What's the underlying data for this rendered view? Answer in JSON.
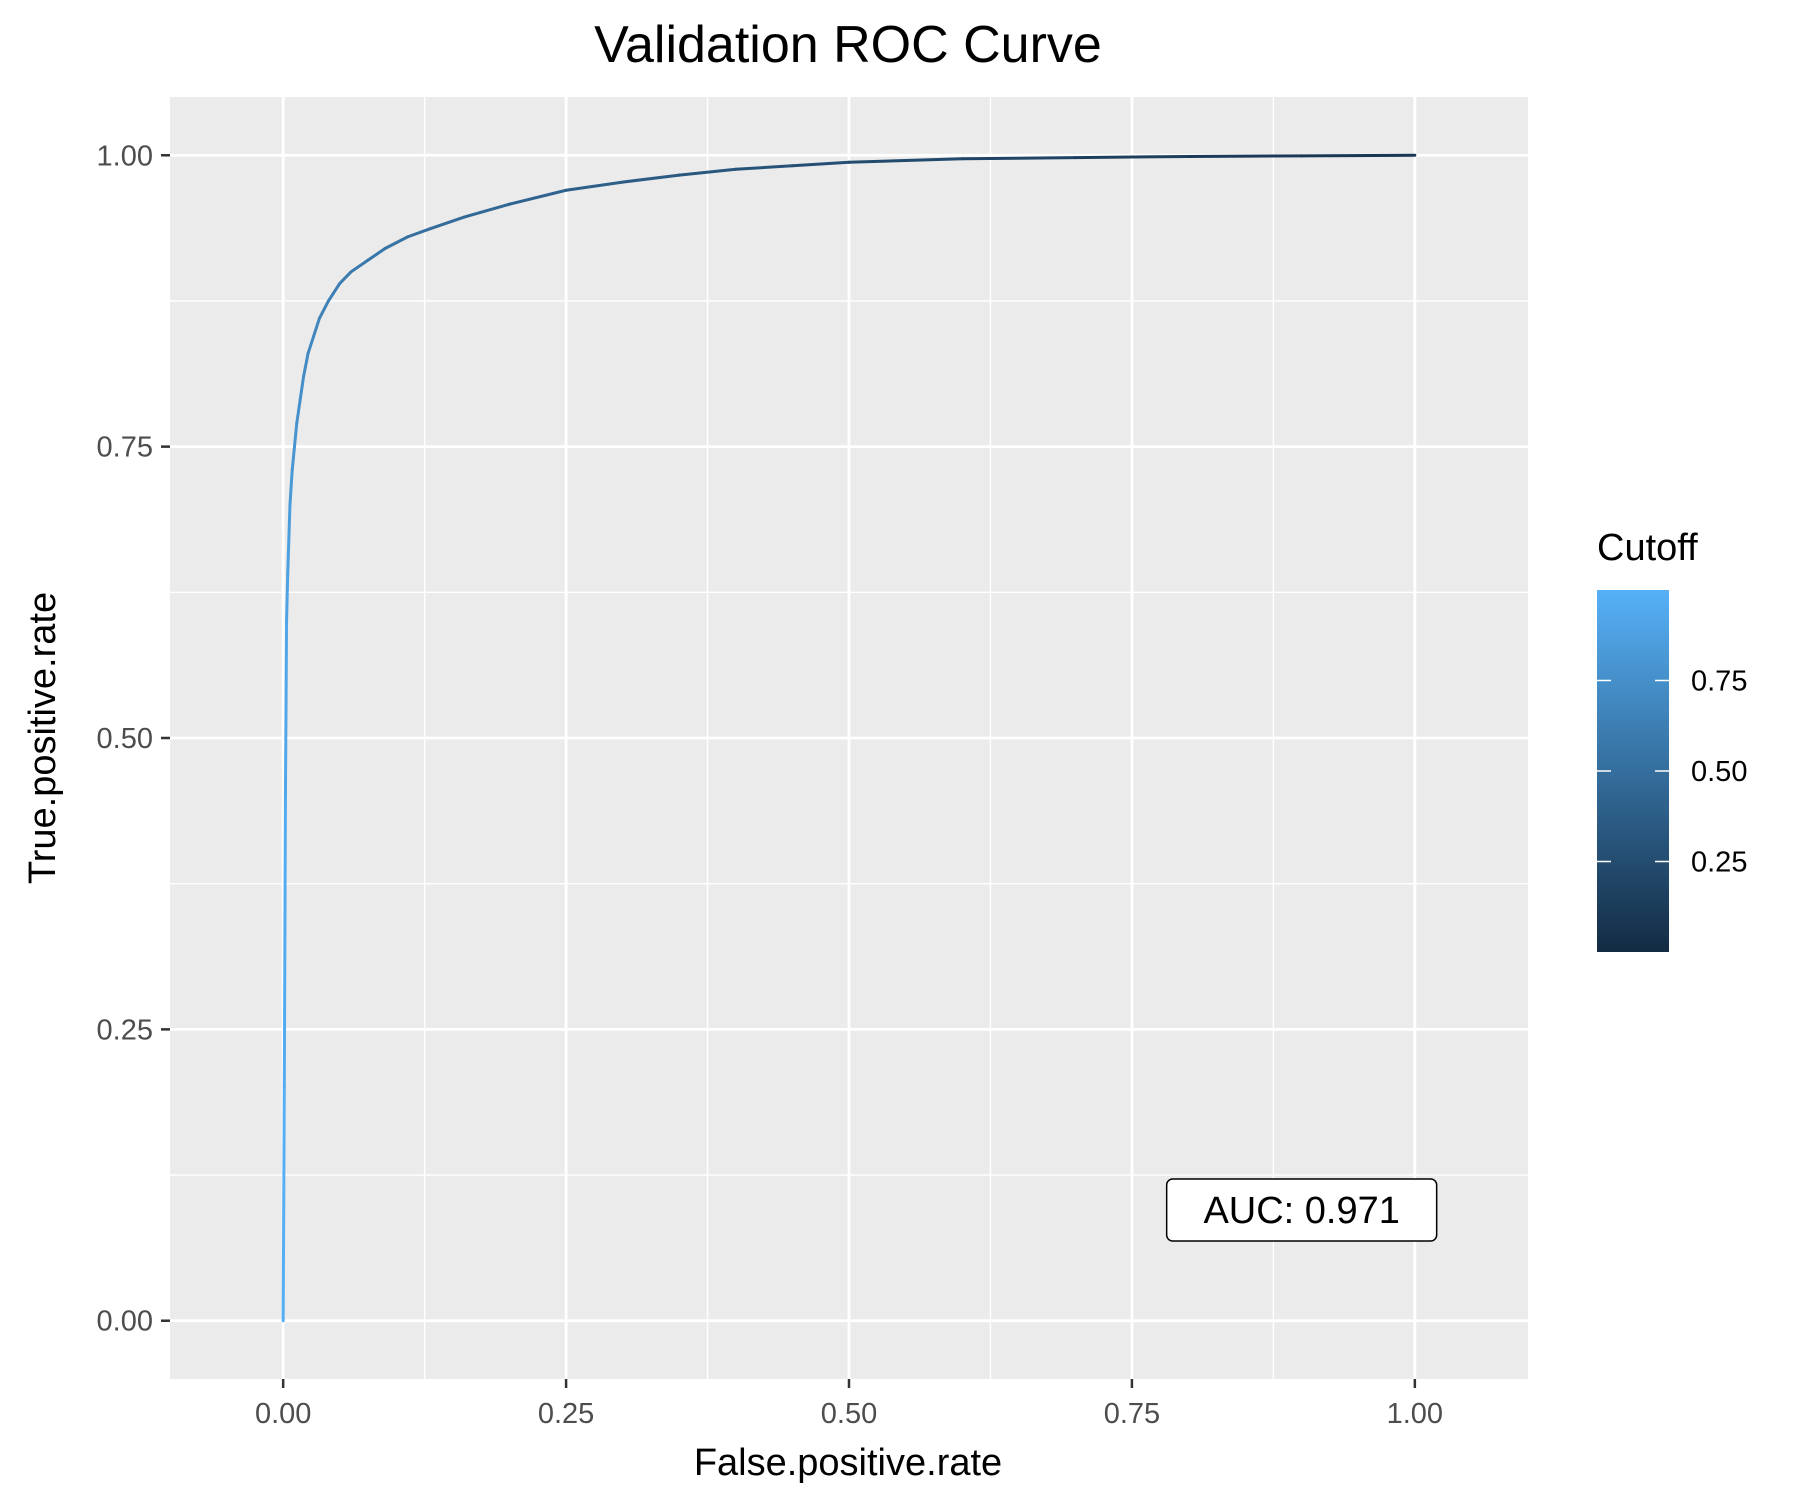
{
  "chart_data": {
    "type": "line",
    "title": "Validation ROC Curve",
    "xlabel": "False.positive.rate",
    "ylabel": "True.positive.rate",
    "xlim": [
      -0.1,
      1.1
    ],
    "ylim": [
      -0.05,
      1.05
    ],
    "x_ticks": [
      0,
      0.25,
      0.5,
      0.75,
      1
    ],
    "y_ticks": [
      0,
      0.25,
      0.5,
      0.75,
      1
    ],
    "x_tick_labels": [
      "0.00",
      "0.25",
      "0.50",
      "0.75",
      "1.00"
    ],
    "y_tick_labels": [
      "0.00",
      "0.25",
      "0.50",
      "0.75",
      "1.00"
    ],
    "grid": true,
    "background": "#ebebeb",
    "series": [
      {
        "x": [
          0,
          0.001,
          0.002,
          0.003,
          0.004,
          0.005,
          0.006,
          0.008,
          0.01,
          0.012,
          0.015,
          0.018,
          0.022,
          0.027,
          0.032,
          0.04,
          0.05,
          0.06,
          0.075,
          0.09,
          0.11,
          0.13,
          0.16,
          0.2,
          0.25,
          0.3,
          0.35,
          0.4,
          0.45,
          0.5,
          0.6,
          0.7,
          0.8,
          0.9,
          1.0
        ],
        "y": [
          0,
          0.2,
          0.45,
          0.6,
          0.64,
          0.67,
          0.7,
          0.73,
          0.75,
          0.77,
          0.79,
          0.81,
          0.83,
          0.845,
          0.86,
          0.875,
          0.89,
          0.9,
          0.91,
          0.92,
          0.93,
          0.937,
          0.947,
          0.958,
          0.97,
          0.977,
          0.983,
          0.988,
          0.991,
          0.994,
          0.997,
          0.998,
          0.999,
          0.9995,
          1.0
        ],
        "cutoff": [
          1.0,
          0.97,
          0.94,
          0.91,
          0.88,
          0.86,
          0.84,
          0.81,
          0.79,
          0.77,
          0.75,
          0.73,
          0.71,
          0.69,
          0.67,
          0.64,
          0.62,
          0.6,
          0.57,
          0.55,
          0.52,
          0.5,
          0.47,
          0.44,
          0.4,
          0.37,
          0.34,
          0.31,
          0.28,
          0.25,
          0.21,
          0.17,
          0.13,
          0.1,
          0.08
        ]
      }
    ],
    "legend": {
      "title": "Cutoff",
      "placement": "right",
      "range": [
        0,
        1
      ],
      "ticks": [
        0.25,
        0.5,
        0.75
      ],
      "tick_labels": [
        "0.25",
        "0.50",
        "0.75"
      ],
      "color_low": "#132b43",
      "color_high": "#56b1f7"
    },
    "annotation": {
      "text": "AUC: 0.971",
      "x": 0.9,
      "y": 0.095
    }
  }
}
